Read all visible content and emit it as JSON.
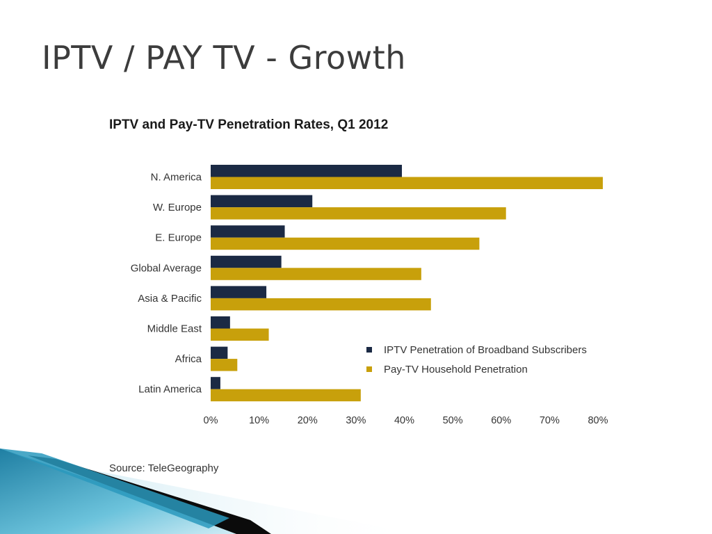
{
  "slide": {
    "title": "IPTV / PAY TV - Growth",
    "source": "Source: TeleGeography"
  },
  "colors": {
    "iptv": "#1b2a44",
    "paytv": "#c8a00b",
    "decoration_teal": "#2c8fb0",
    "decoration_dark": "#0b0b0b"
  },
  "chart_data": {
    "type": "bar",
    "orientation": "horizontal",
    "title": "IPTV and Pay-TV Penetration Rates, Q1 2012",
    "categories": [
      "N. America",
      "W. Europe",
      "E. Europe",
      "Global Average",
      "Asia & Pacific",
      "Middle East",
      "Africa",
      "Latin America"
    ],
    "series": [
      {
        "name": "IPTV Penetration of Broadband Subscribers",
        "values": [
          39.5,
          21,
          15.3,
          14.6,
          11.5,
          4,
          3.5,
          2
        ]
      },
      {
        "name": "Pay-TV Household Penetration",
        "values": [
          81,
          61,
          55.5,
          43.5,
          45.5,
          12,
          5.5,
          31
        ]
      }
    ],
    "x_ticks": [
      "0%",
      "10%",
      "20%",
      "30%",
      "40%",
      "50%",
      "60%",
      "70%",
      "80%"
    ],
    "xlim": [
      0,
      80
    ],
    "grid": false,
    "legend_position": "bottom-right"
  }
}
